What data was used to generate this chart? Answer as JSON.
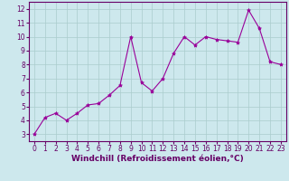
{
  "x": [
    0,
    1,
    2,
    3,
    4,
    5,
    6,
    7,
    8,
    9,
    10,
    11,
    12,
    13,
    14,
    15,
    16,
    17,
    18,
    19,
    20,
    21,
    22,
    23
  ],
  "y": [
    3.0,
    4.2,
    4.5,
    4.0,
    4.5,
    5.1,
    5.2,
    5.8,
    6.5,
    10.0,
    6.7,
    6.1,
    7.0,
    8.8,
    10.0,
    9.4,
    10.0,
    9.8,
    9.7,
    9.6,
    11.9,
    10.6,
    8.2,
    8.0
  ],
  "line_color": "#990099",
  "marker": "*",
  "marker_size": 3,
  "background_color": "#cde8ed",
  "grid_color": "#aacccc",
  "xlabel": "Windchill (Refroidissement éolien,°C)",
  "xlabel_fontsize": 6.5,
  "xlim": [
    -0.5,
    23.5
  ],
  "ylim": [
    2.5,
    12.5
  ],
  "yticks": [
    3,
    4,
    5,
    6,
    7,
    8,
    9,
    10,
    11,
    12
  ],
  "xticks": [
    0,
    1,
    2,
    3,
    4,
    5,
    6,
    7,
    8,
    9,
    10,
    11,
    12,
    13,
    14,
    15,
    16,
    17,
    18,
    19,
    20,
    21,
    22,
    23
  ],
  "tick_fontsize": 5.5,
  "tick_color": "#660066",
  "spine_color": "#660066",
  "label_color": "#660066"
}
